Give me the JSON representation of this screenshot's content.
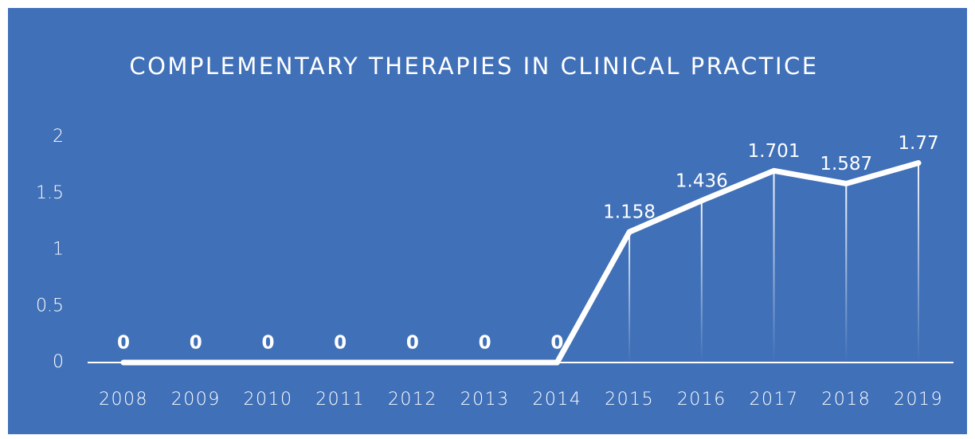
{
  "chart_data": {
    "type": "line",
    "title": "COMPLEMENTARY THERAPIES IN CLINICAL PRACTICE",
    "categories": [
      "2008",
      "2009",
      "2010",
      "2011",
      "2012",
      "2013",
      "2014",
      "2015",
      "2016",
      "2017",
      "2018",
      "2019"
    ],
    "values": [
      0,
      0,
      0,
      0,
      0,
      0,
      0,
      1.158,
      1.436,
      1.701,
      1.587,
      1.77
    ],
    "color": "#ffffff",
    "background": "#4070b8",
    "ylim": [
      0,
      2
    ],
    "yticks": [
      0,
      0.5,
      1,
      1.5,
      2
    ],
    "grid": false
  }
}
